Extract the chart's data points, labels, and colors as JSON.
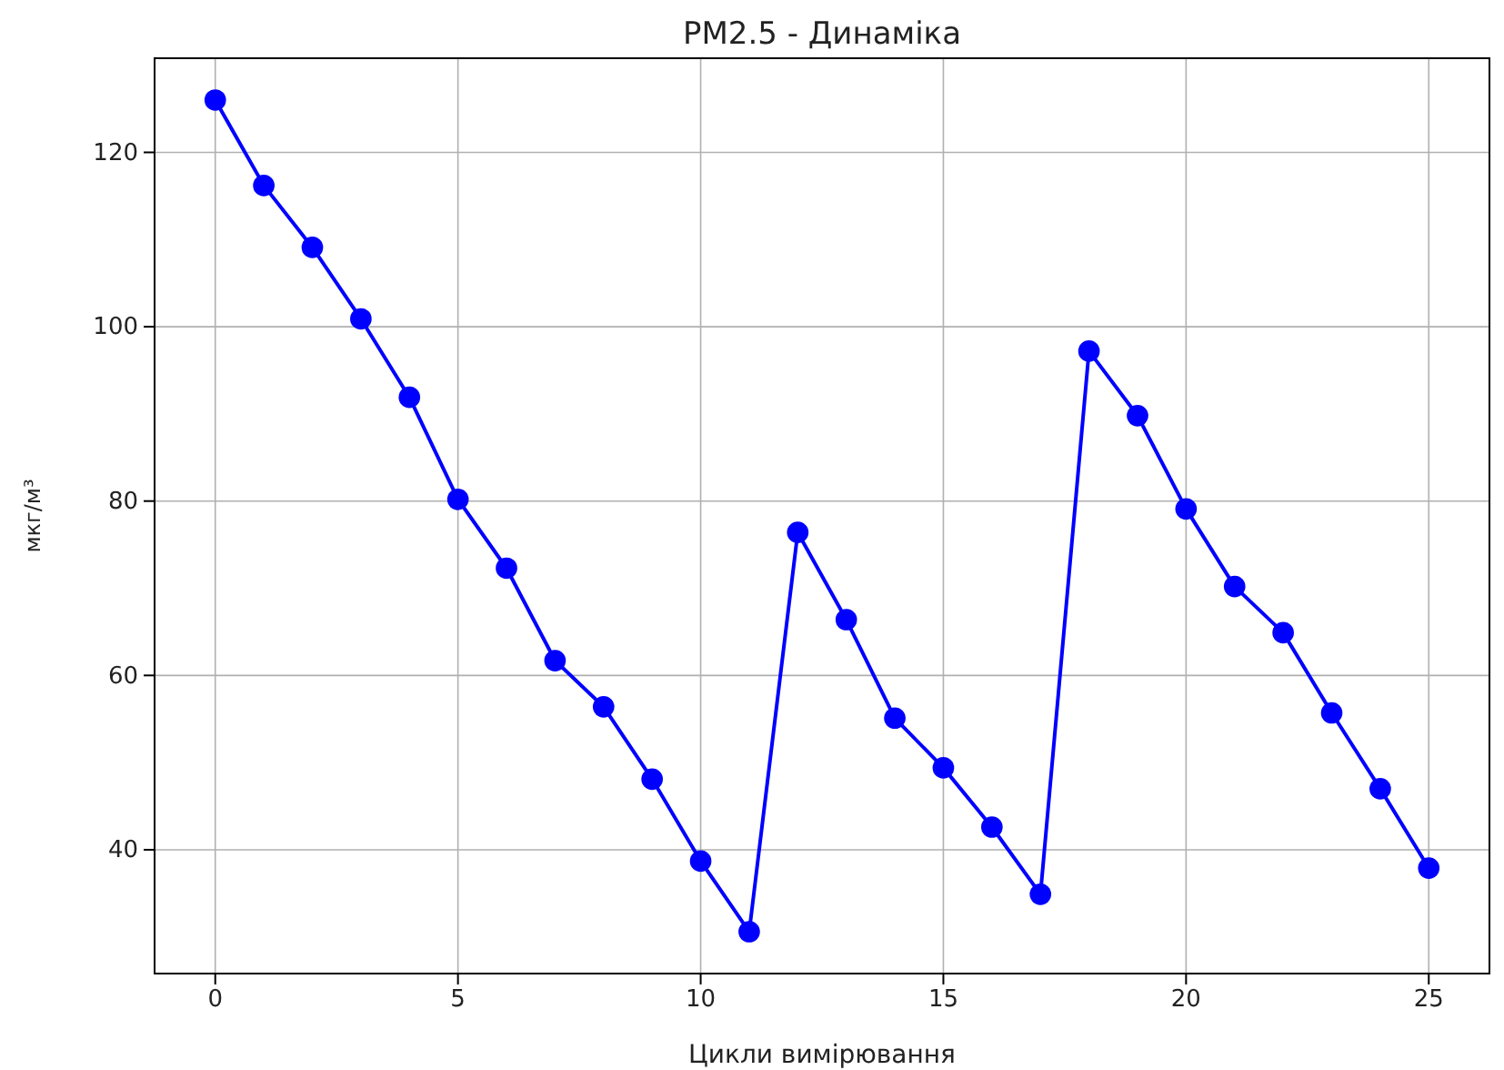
{
  "chart_data": {
    "type": "line",
    "title": "PM2.5 - Динаміка",
    "xlabel": "Цикли вимірювання",
    "ylabel": "мкг/м³",
    "x": [
      0,
      1,
      2,
      3,
      4,
      5,
      6,
      7,
      8,
      9,
      10,
      11,
      12,
      13,
      14,
      15,
      16,
      17,
      18,
      19,
      20,
      21,
      22,
      23,
      24,
      25
    ],
    "series": [
      {
        "color": "#0000ff",
        "values": [
          126,
          116.2,
          109.1,
          100.9,
          91.9,
          80.2,
          72.3,
          61.7,
          56.4,
          48.1,
          38.7,
          30.6,
          76.4,
          66.4,
          55.1,
          49.4,
          42.6,
          34.9,
          97.2,
          89.8,
          79.1,
          70.2,
          64.9,
          55.7,
          47.0,
          37.9
        ]
      }
    ],
    "xlim": [
      -1.25,
      26.25
    ],
    "xticks": [
      0,
      5,
      10,
      15,
      20,
      25
    ],
    "ylim": [
      25.8,
      130.8
    ],
    "yticks": [
      40,
      60,
      80,
      100,
      120
    ],
    "grid": true,
    "marker": "circle",
    "line_style": "solid"
  }
}
